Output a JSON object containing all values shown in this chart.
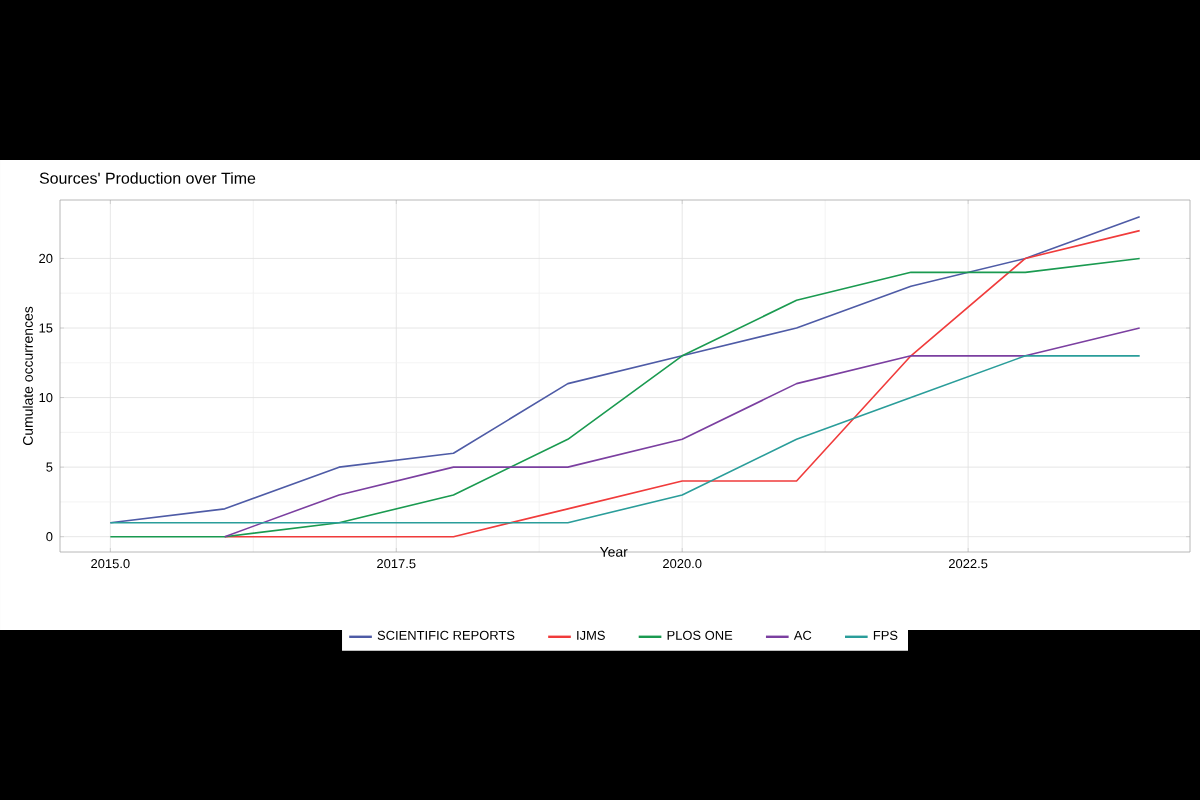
{
  "chart_data": {
    "type": "line",
    "title": "Sources' Production over Time",
    "xlabel": "Year",
    "ylabel": "Cumulate occurrences",
    "x": [
      2015,
      2016,
      2017,
      2018,
      2019,
      2020,
      2021,
      2022,
      2023,
      2024
    ],
    "series": [
      {
        "name": "SCIENTIFIC REPORTS",
        "color": "#4e5ba6",
        "values": [
          1,
          2,
          5,
          6,
          11,
          13,
          15,
          18,
          20,
          23
        ]
      },
      {
        "name": "IJMS",
        "color": "#f03b3b",
        "values": [
          null,
          0,
          0,
          0,
          2,
          4,
          4,
          13,
          20,
          22
        ]
      },
      {
        "name": "PLOS ONE",
        "color": "#1a9a50",
        "values": [
          0,
          0,
          1,
          3,
          7,
          13,
          17,
          19,
          19,
          20
        ]
      },
      {
        "name": "AC",
        "color": "#7b3fa0",
        "values": [
          null,
          0,
          3,
          5,
          5,
          7,
          11,
          13,
          13,
          15
        ]
      },
      {
        "name": "FPS",
        "color": "#2a9d9a",
        "values": [
          1,
          1,
          1,
          1,
          1,
          3,
          7,
          10,
          13,
          13
        ]
      }
    ],
    "xlim": [
      2014.56,
      2024.44
    ],
    "ylim": [
      -1.1,
      24.2
    ],
    "xticks": [
      {
        "value": 2015,
        "label": "2015.0"
      },
      {
        "value": 2017.5,
        "label": "2017.5"
      },
      {
        "value": 2020,
        "label": "2020.0"
      },
      {
        "value": 2022.5,
        "label": "2022.5"
      }
    ],
    "yticks": [
      0,
      5,
      10,
      15,
      20
    ],
    "grid": true,
    "legend": "bottom",
    "marker": "none",
    "line_style": "solid"
  }
}
